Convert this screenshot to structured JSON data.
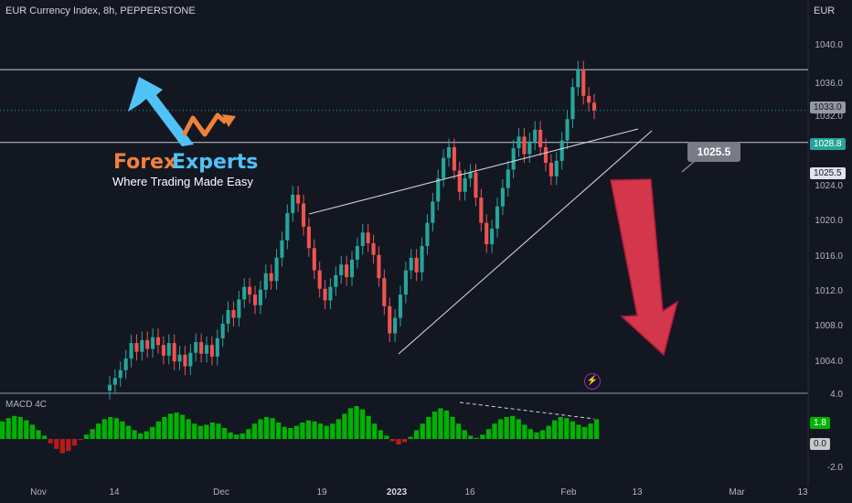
{
  "header": {
    "title": "EUR Currency Index, 8h, PEPPERSTONE",
    "currency": "EUR"
  },
  "logo": {
    "word_a": "Forex",
    "word_b": "Experts",
    "tagline": "Where Trading Made Easy"
  },
  "callout_label": "1025.5",
  "indicator": {
    "name": "MACD 4C"
  },
  "chart_data": [
    {
      "type": "candlestick",
      "title": "EUR Currency Index, 8h, PEPPERSTONE",
      "y_axis_ticks": [
        "1040.0",
        "1036.0",
        "1032.0",
        "1028.0",
        "1024.0",
        "1020.0",
        "1016.0",
        "1012.0",
        "1008.0",
        "1004.0"
      ],
      "x_axis_ticks": [
        "Nov",
        "14",
        "Dec",
        "19",
        "2023",
        "16",
        "Feb",
        "13",
        "Mar",
        "13"
      ],
      "price_tags": [
        {
          "text": "1033.0",
          "color": "#b2b5be"
        },
        {
          "text": "1028.8",
          "color": "#26a69a"
        },
        {
          "text": "1025.5",
          "color": "#e0e3eb"
        }
      ],
      "horizontal_lines": [
        1033.0,
        1025.5
      ],
      "series": [
        {
          "name": "close",
          "values": [
            1000.5,
            1001.2,
            1002.0,
            1003.2,
            1004.8,
            1003.9,
            1005.1,
            1004.2,
            1005.4,
            1004.6,
            1003.5,
            1004.8,
            1002.9,
            1003.6,
            1002.4,
            1003.8,
            1004.9,
            1003.7,
            1004.6,
            1003.4,
            1005.3,
            1006.8,
            1008.2,
            1007.4,
            1009.3,
            1010.6,
            1009.8,
            1008.7,
            1010.3,
            1012.0,
            1011.2,
            1013.6,
            1015.4,
            1018.2,
            1020.1,
            1019.2,
            1016.8,
            1014.6,
            1012.3,
            1010.4,
            1009.2,
            1010.6,
            1011.8,
            1012.9,
            1011.6,
            1013.4,
            1014.8,
            1016.2,
            1015.1,
            1013.9,
            1011.5,
            1008.6,
            1005.8,
            1007.4,
            1009.8,
            1012.3,
            1013.6,
            1012.1,
            1014.8,
            1017.2,
            1019.4,
            1021.8,
            1023.9,
            1025.0,
            1022.6,
            1020.4,
            1021.8,
            1022.4,
            1019.8,
            1017.2,
            1015.0,
            1016.6,
            1018.9,
            1020.8,
            1022.7,
            1024.9,
            1026.1,
            1024.3,
            1025.6,
            1026.8,
            1025.0,
            1023.4,
            1022.0,
            1023.6,
            1025.7,
            1027.9,
            1031.2,
            1033.0,
            1030.3,
            1029.6,
            1028.8
          ]
        }
      ],
      "annotations": [
        "rising wedge",
        "projected down arrow"
      ]
    },
    {
      "type": "bar",
      "title": "MACD 4C",
      "y_axis_ticks": [
        "4.0",
        "1.8",
        "0.0",
        "-2.0"
      ],
      "values": [
        1.6,
        1.9,
        2.1,
        2.0,
        1.7,
        1.3,
        0.8,
        0.3,
        -0.4,
        -0.9,
        -1.3,
        -1.1,
        -0.6,
        -0.1,
        0.4,
        0.9,
        1.4,
        1.8,
        2.0,
        1.9,
        1.6,
        1.2,
        0.8,
        0.5,
        0.7,
        1.1,
        1.6,
        2.0,
        2.3,
        2.4,
        2.2,
        1.8,
        1.4,
        1.2,
        1.3,
        1.5,
        1.4,
        1.0,
        0.6,
        0.4,
        0.5,
        0.9,
        1.4,
        1.8,
        2.0,
        1.9,
        1.5,
        1.1,
        1.0,
        1.2,
        1.5,
        1.7,
        1.6,
        1.4,
        1.2,
        1.4,
        1.8,
        2.3,
        2.8,
        3.0,
        2.7,
        2.1,
        1.4,
        0.8,
        0.3,
        -0.2,
        -0.5,
        -0.3,
        0.2,
        0.8,
        1.4,
        2.0,
        2.5,
        2.8,
        2.6,
        2.0,
        1.4,
        0.8,
        0.3,
        0.1,
        0.4,
        0.9,
        1.4,
        1.8,
        2.0,
        2.1,
        1.8,
        1.3,
        0.9,
        0.6,
        0.8,
        1.2,
        1.7,
        2.0,
        1.9,
        1.6,
        1.3,
        1.1,
        1.4,
        1.8
      ],
      "zero_line": 0.0
    }
  ],
  "colors": {
    "background": "#131722",
    "up": "#26a69a",
    "down": "#ef5350",
    "hist_up": "#00b300",
    "hist_down": "#b71c1c",
    "arrow_down": "#e53950",
    "arrow_up": "#4fc3f7"
  }
}
